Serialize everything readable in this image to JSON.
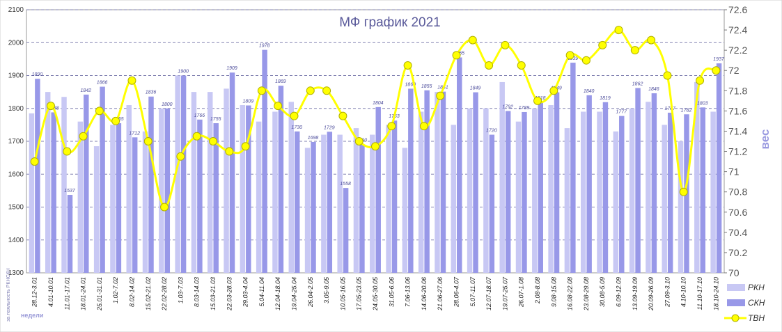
{
  "chart_data": {
    "type": "bar",
    "title": "МФ график 2021",
    "ylim": [
      1300,
      2100
    ],
    "y2lim": [
      70,
      72.6
    ],
    "ylabel_right": "вес",
    "side_text": "за лояльность РКНСКН",
    "xlabel_note": "недели",
    "grid": true,
    "legend_position": "bottom-right",
    "colors": {
      "rkn": "#c8c8f4",
      "skn": "#9898e8",
      "tvn": "#ffff00",
      "tvn_marker_edge": "#b0b000"
    },
    "categories": [
      "28.12-3.01",
      "4.01-10.01",
      "11.01-17.01",
      "18.01-24.01",
      "25.01-31.01",
      "1.02-7.02",
      "8.02-14.02",
      "15.02-21.02",
      "22.02-28.02",
      "1.03-7.03",
      "8.03-14.03",
      "15.03-21.03",
      "22.03-28.03",
      "29.03-4.04",
      "5.04-11.04",
      "12.04-18.04",
      "19.04-25.04",
      "26.04-2.05",
      "3.05-9.05",
      "10.05-16.05",
      "17.05-23.05",
      "24.05-30.05",
      "31.05-6.06",
      "7.06-13.06",
      "14.06-20.06",
      "21.06-27.06",
      "28.06-4.07",
      "5.07-11.07",
      "12.07-18.07",
      "19.07-25.07",
      "26.07-1.08",
      "2.08-8.08",
      "9.08-15.08",
      "16.08-22.08",
      "23.08-29.08",
      "30.08-5.09",
      "6.09-12.09",
      "13.09-19.09",
      "20.09-26.09",
      "27.09-3.10",
      "4.10-10.10",
      "11.10-17.10",
      "18.10-24.10"
    ],
    "series": [
      {
        "name": "РКН",
        "kind": "bar",
        "axis": "left",
        "values": [
          1785,
          1850,
          1835,
          1760,
          1685,
          1750,
          1810,
          1730,
          1800,
          1900,
          1850,
          1850,
          1860,
          1810,
          1760,
          1790,
          1820,
          1680,
          1720,
          1720,
          1740,
          1720,
          1750,
          1680,
          1790,
          1850,
          1750,
          1800,
          1800,
          1880,
          1760,
          1800,
          1810,
          1740,
          1790,
          1790,
          1730,
          1800,
          1820,
          1750,
          1700,
          1880,
          1790
        ]
      },
      {
        "name": "СКН",
        "kind": "bar",
        "axis": "left",
        "values": [
          1890,
          1788,
          1537,
          1842,
          1866,
          1755,
          1712,
          1836,
          1800,
          1900,
          1766,
          1755,
          1909,
          1809,
          1978,
          1869,
          1730,
          1698,
          1729,
          1558,
          1690,
          1804,
          1763,
          1860,
          1855,
          1851,
          1955,
          1849,
          1720,
          1792,
          1789,
          1818,
          1849,
          1939,
          1840,
          1819,
          1777,
          1862,
          1846,
          1787,
          1782,
          1803,
          1937
        ],
        "labels": [
          "1890",
          "1788",
          "1537",
          "1842",
          "1866",
          "1755",
          "1712",
          "1836",
          "1800",
          "1900",
          "1766",
          "1755",
          "1909",
          "1809",
          "1978",
          "1869",
          "1730",
          "1698",
          "1729",
          "1558",
          "1690",
          "1804",
          "1763",
          "1860",
          "1855",
          "1851",
          "1955",
          "1849",
          "1720",
          "1792",
          "1789",
          "1818",
          "1849",
          "1939",
          "1840",
          "1819",
          "1777",
          "1862",
          "1846",
          "1787",
          "1782",
          "1803",
          "1937"
        ]
      },
      {
        "name": "ТВН",
        "kind": "line",
        "axis": "right",
        "values": [
          71.1,
          71.65,
          71.2,
          71.35,
          71.6,
          71.5,
          71.9,
          71.3,
          70.65,
          71.15,
          71.35,
          71.3,
          71.2,
          71.25,
          71.8,
          71.65,
          71.55,
          71.8,
          71.8,
          71.55,
          71.3,
          71.25,
          71.45,
          72.05,
          71.45,
          71.75,
          72.15,
          72.3,
          72.05,
          72.25,
          72.05,
          71.7,
          71.8,
          72.15,
          72.1,
          72.25,
          72.4,
          72.2,
          72.3,
          71.95,
          70.8,
          71.9,
          72.0
        ]
      }
    ],
    "y_ticks": [
      "1300",
      "1400",
      "1500",
      "1600",
      "1700",
      "1800",
      "1900",
      "2000",
      "2100"
    ],
    "y2_ticks": [
      "70",
      "70.2",
      "70.4",
      "70.6",
      "70.8",
      "71",
      "71.2",
      "71.4",
      "71.6",
      "71.8",
      "72",
      "72.2",
      "72.4",
      "72.6"
    ]
  }
}
